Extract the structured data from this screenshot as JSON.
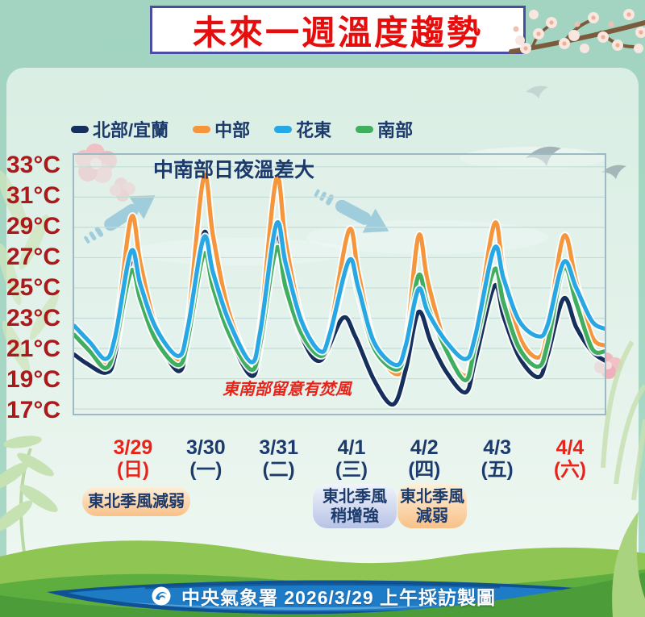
{
  "page": {
    "title_banner": "未來一週溫度趨勢"
  },
  "legend": {
    "items": [
      {
        "label": "北部/宜蘭",
        "color": "#16305e"
      },
      {
        "label": "中部",
        "color": "#f5963c"
      },
      {
        "label": "花東",
        "color": "#27a7e3"
      },
      {
        "label": "南部",
        "color": "#3fae5e"
      }
    ]
  },
  "annotations": {
    "chart_note": "中南部日夜溫差大",
    "foehn_warning": "東南部留意有焚風",
    "trend_arrows": [
      {
        "direction": "up-right"
      },
      {
        "direction": "down-right"
      }
    ],
    "badges": [
      {
        "lines": [
          "東北季風減弱"
        ],
        "style": "warm"
      },
      {
        "lines": [
          "東北季風",
          "稍增強"
        ],
        "style": "cool"
      },
      {
        "lines": [
          "東北季風",
          "減弱"
        ],
        "style": "warm"
      }
    ]
  },
  "footer": {
    "source": "中央氣象署 2026/3/29 上午採訪製圖"
  },
  "chart_data": {
    "type": "line",
    "title": "未來一週溫度趨勢",
    "x_unit": "hours from 3/29 00:00 (7 days shown)",
    "x_range": [
      0,
      168
    ],
    "y_unit": "°C",
    "y_ticks": [
      33,
      31,
      29,
      27,
      25,
      23,
      21,
      19,
      17
    ],
    "y_range": [
      16.2,
      33.8
    ],
    "grid": "horizontal",
    "legend_position": "top",
    "categories": [
      {
        "date": "3/29",
        "weekday": "(日)",
        "highlight": true
      },
      {
        "date": "3/30",
        "weekday": "(一)",
        "highlight": false
      },
      {
        "date": "3/31",
        "weekday": "(二)",
        "highlight": false
      },
      {
        "date": "4/1",
        "weekday": "(三)",
        "highlight": false
      },
      {
        "date": "4/2",
        "weekday": "(四)",
        "highlight": false
      },
      {
        "date": "4/3",
        "weekday": "(五)",
        "highlight": false
      },
      {
        "date": "4/4",
        "weekday": "(六)",
        "highlight": true
      }
    ],
    "draw_order": [
      1,
      0,
      3,
      2
    ],
    "series": [
      {
        "name": "北部/宜蘭",
        "color": "#16305e",
        "points": [
          [
            0,
            20.6
          ],
          [
            4,
            20.0
          ],
          [
            10,
            19.4
          ],
          [
            13,
            20.6
          ],
          [
            18,
            26.8
          ],
          [
            21,
            24.6
          ],
          [
            26,
            21.8
          ],
          [
            33,
            19.5
          ],
          [
            36,
            21.6
          ],
          [
            41,
            28.6
          ],
          [
            44,
            25.6
          ],
          [
            49,
            22.0
          ],
          [
            56,
            19.2
          ],
          [
            59,
            21.2
          ],
          [
            64,
            28.5
          ],
          [
            67,
            25.2
          ],
          [
            72,
            21.8
          ],
          [
            78,
            20.2
          ],
          [
            85,
            23.0
          ],
          [
            89,
            21.8
          ],
          [
            95,
            18.9
          ],
          [
            101,
            17.3
          ],
          [
            105,
            19.6
          ],
          [
            109,
            23.4
          ],
          [
            113,
            21.4
          ],
          [
            118,
            19.4
          ],
          [
            124,
            18.1
          ],
          [
            127,
            20.2
          ],
          [
            133,
            25.1
          ],
          [
            136,
            23.1
          ],
          [
            141,
            20.4
          ],
          [
            147,
            19.1
          ],
          [
            150,
            20.6
          ],
          [
            155,
            24.3
          ],
          [
            159,
            22.4
          ],
          [
            164,
            20.8
          ],
          [
            168,
            20.2
          ]
        ]
      },
      {
        "name": "中部",
        "color": "#f5963c",
        "points": [
          [
            0,
            22.3
          ],
          [
            5,
            21.0
          ],
          [
            10,
            19.9
          ],
          [
            13,
            21.6
          ],
          [
            18,
            29.6
          ],
          [
            21,
            26.6
          ],
          [
            26,
            22.4
          ],
          [
            33,
            20.2
          ],
          [
            36,
            22.6
          ],
          [
            41,
            32.3
          ],
          [
            44,
            28.4
          ],
          [
            49,
            23.4
          ],
          [
            56,
            20.1
          ],
          [
            59,
            22.6
          ],
          [
            64,
            32.2
          ],
          [
            67,
            28.0
          ],
          [
            72,
            23.0
          ],
          [
            78,
            20.7
          ],
          [
            81,
            22.2
          ],
          [
            87,
            28.8
          ],
          [
            90,
            26.0
          ],
          [
            95,
            21.4
          ],
          [
            102,
            19.3
          ],
          [
            105,
            21.0
          ],
          [
            109,
            28.4
          ],
          [
            112,
            25.4
          ],
          [
            118,
            21.0
          ],
          [
            124,
            19.2
          ],
          [
            127,
            21.6
          ],
          [
            133,
            29.2
          ],
          [
            136,
            26.0
          ],
          [
            141,
            21.8
          ],
          [
            147,
            20.4
          ],
          [
            150,
            22.2
          ],
          [
            155,
            28.4
          ],
          [
            159,
            25.4
          ],
          [
            164,
            21.8
          ],
          [
            168,
            21.2
          ]
        ]
      },
      {
        "name": "花東",
        "color": "#27a7e3",
        "points": [
          [
            0,
            22.5
          ],
          [
            5,
            21.4
          ],
          [
            10,
            20.3
          ],
          [
            13,
            21.8
          ],
          [
            18,
            27.4
          ],
          [
            21,
            25.2
          ],
          [
            26,
            22.3
          ],
          [
            33,
            20.5
          ],
          [
            36,
            22.4
          ],
          [
            41,
            28.3
          ],
          [
            44,
            26.0
          ],
          [
            49,
            22.8
          ],
          [
            56,
            20.1
          ],
          [
            59,
            22.2
          ],
          [
            64,
            29.2
          ],
          [
            67,
            26.6
          ],
          [
            72,
            22.8
          ],
          [
            78,
            20.8
          ],
          [
            81,
            22.0
          ],
          [
            87,
            26.8
          ],
          [
            90,
            25.0
          ],
          [
            95,
            21.4
          ],
          [
            102,
            19.9
          ],
          [
            105,
            21.2
          ],
          [
            109,
            24.9
          ],
          [
            112,
            23.4
          ],
          [
            118,
            21.4
          ],
          [
            124,
            20.3
          ],
          [
            127,
            21.8
          ],
          [
            133,
            27.6
          ],
          [
            136,
            25.6
          ],
          [
            141,
            22.8
          ],
          [
            147,
            21.8
          ],
          [
            150,
            22.6
          ],
          [
            155,
            26.7
          ],
          [
            159,
            25.0
          ],
          [
            164,
            22.8
          ],
          [
            168,
            22.3
          ]
        ]
      },
      {
        "name": "南部",
        "color": "#3fae5e",
        "points": [
          [
            0,
            21.9
          ],
          [
            5,
            20.8
          ],
          [
            10,
            19.7
          ],
          [
            13,
            21.2
          ],
          [
            18,
            26.1
          ],
          [
            21,
            24.2
          ],
          [
            26,
            21.5
          ],
          [
            33,
            19.9
          ],
          [
            36,
            21.6
          ],
          [
            41,
            27.2
          ],
          [
            44,
            25.0
          ],
          [
            49,
            22.0
          ],
          [
            56,
            19.6
          ],
          [
            59,
            21.4
          ],
          [
            64,
            27.6
          ],
          [
            67,
            25.0
          ],
          [
            72,
            22.0
          ],
          [
            78,
            20.5
          ],
          [
            81,
            21.8
          ],
          [
            87,
            26.5
          ],
          [
            90,
            24.6
          ],
          [
            95,
            21.0
          ],
          [
            102,
            19.6
          ],
          [
            105,
            21.0
          ],
          [
            109,
            25.8
          ],
          [
            112,
            23.8
          ],
          [
            118,
            20.8
          ],
          [
            124,
            18.9
          ],
          [
            127,
            21.2
          ],
          [
            133,
            26.2
          ],
          [
            136,
            24.0
          ],
          [
            141,
            21.0
          ],
          [
            147,
            19.8
          ],
          [
            150,
            21.4
          ],
          [
            155,
            26.3
          ],
          [
            159,
            24.0
          ],
          [
            164,
            21.0
          ],
          [
            168,
            20.8
          ]
        ]
      }
    ],
    "daily_high_low": {
      "北部/宜蘭": {
        "high": [
          26.8,
          28.6,
          28.5,
          23.0,
          23.4,
          25.1,
          24.3
        ],
        "low": [
          19.4,
          19.5,
          19.2,
          17.3,
          18.1,
          19.1,
          20.2
        ]
      },
      "中部": {
        "high": [
          29.6,
          32.3,
          32.2,
          28.8,
          28.4,
          29.2,
          28.4
        ],
        "low": [
          19.9,
          20.2,
          20.1,
          19.3,
          19.2,
          20.4,
          21.2
        ]
      },
      "花東": {
        "high": [
          27.4,
          28.3,
          29.2,
          26.8,
          24.9,
          27.6,
          26.7
        ],
        "low": [
          20.3,
          20.5,
          20.1,
          19.9,
          20.3,
          21.8,
          22.3
        ]
      },
      "南部": {
        "high": [
          26.1,
          27.2,
          27.6,
          26.5,
          25.8,
          26.2,
          26.3
        ],
        "low": [
          19.7,
          19.9,
          19.6,
          19.6,
          18.9,
          19.8,
          20.8
        ]
      }
    }
  }
}
